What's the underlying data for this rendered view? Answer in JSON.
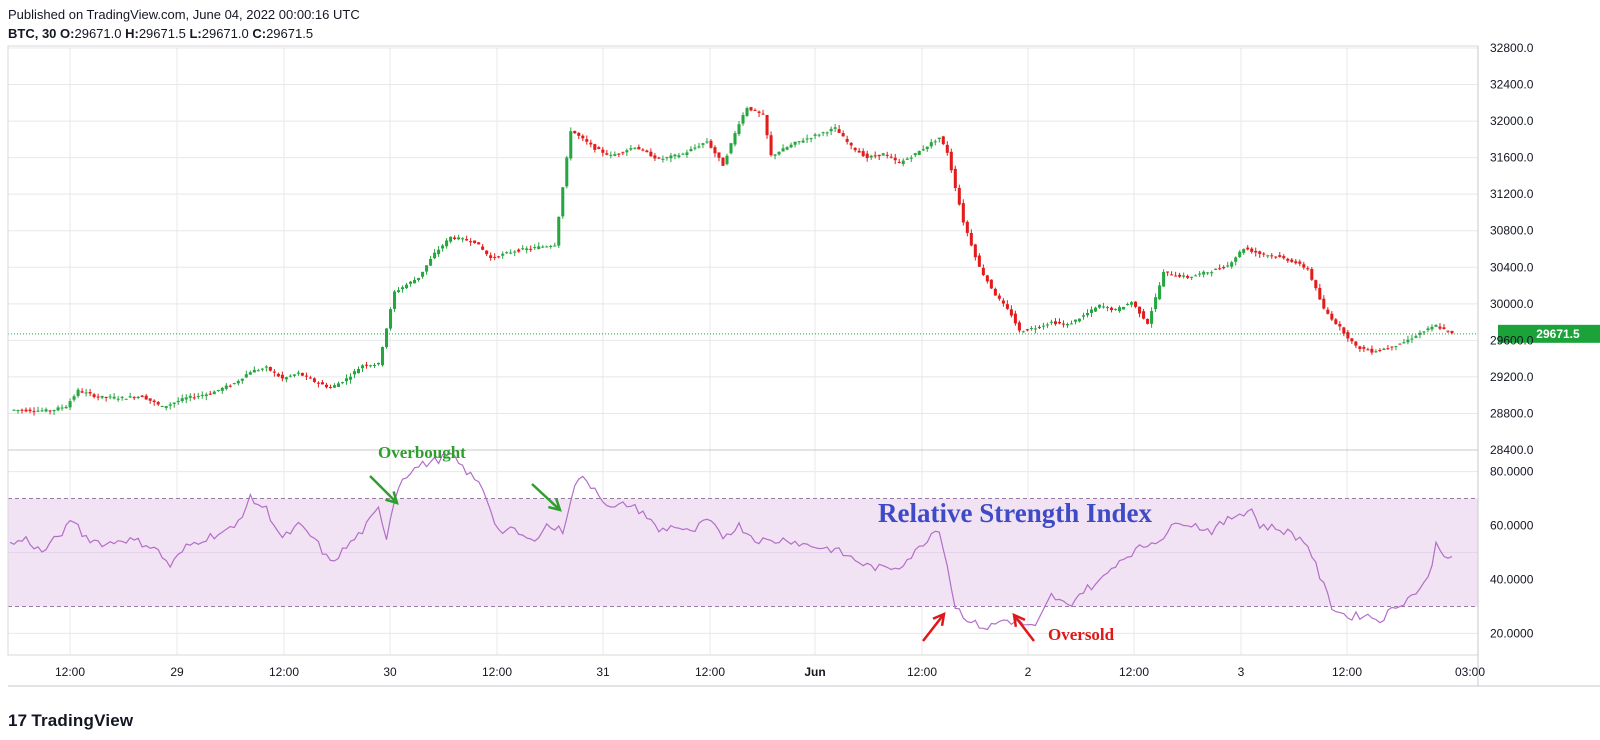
{
  "header": {
    "published": "Published on TradingView.com, June 04, 2022 00:00:16 UTC",
    "symbol": "BTC, 30",
    "o_label": "O:",
    "o_val": "29671.0",
    "h_label": "H:",
    "h_val": "29671.5",
    "l_label": "L:",
    "l_val": "29671.0",
    "c_label": "C:",
    "c_val": "29671.5"
  },
  "footer": {
    "logo_text": "TradingView",
    "logo_icon": "tradingview-logo-icon"
  },
  "colors": {
    "up": "#26a641",
    "down": "#e31b1b",
    "rsi": "#b36ec8",
    "band": "#f1e3f3",
    "grid": "#e8e8ec",
    "price_tag": "#1ba33a",
    "annotation_title": "#3f4bc6",
    "overbought": "#2e9e2e",
    "oversold": "#e01818"
  },
  "chart_data": [
    {
      "type": "candlestick",
      "symbol": "BTC",
      "interval": "30",
      "ylim": [
        28400,
        32800
      ],
      "y_ticks": [
        "32800.0",
        "32400.0",
        "32000.0",
        "31600.0",
        "31200.0",
        "30800.0",
        "30400.0",
        "30000.0",
        "29600.0",
        "29200.0",
        "28800.0",
        "28400.0"
      ],
      "last_price": "29671.5",
      "x_ticks": [
        "12:00",
        "29",
        "12:00",
        "30",
        "12:00",
        "31",
        "12:00",
        "Jun",
        "12:00",
        "2",
        "12:00",
        "3",
        "12:00",
        "03:00"
      ],
      "anchors": [
        [
          0,
          28840
        ],
        [
          10,
          28830
        ],
        [
          14,
          28880
        ],
        [
          17,
          29050
        ],
        [
          22,
          28980
        ],
        [
          28,
          28970
        ],
        [
          33,
          28990
        ],
        [
          38,
          28870
        ],
        [
          44,
          28970
        ],
        [
          50,
          29020
        ],
        [
          56,
          29130
        ],
        [
          60,
          29260
        ],
        [
          64,
          29300
        ],
        [
          68,
          29180
        ],
        [
          72,
          29240
        ],
        [
          76,
          29150
        ],
        [
          80,
          29080
        ],
        [
          84,
          29180
        ],
        [
          88,
          29330
        ],
        [
          92,
          29340
        ],
        [
          96,
          30130
        ],
        [
          102,
          30290
        ],
        [
          106,
          30550
        ],
        [
          110,
          30730
        ],
        [
          116,
          30680
        ],
        [
          120,
          30500
        ],
        [
          126,
          30580
        ],
        [
          132,
          30620
        ],
        [
          136,
          30650
        ],
        [
          140,
          31900
        ],
        [
          146,
          31700
        ],
        [
          150,
          31620
        ],
        [
          156,
          31720
        ],
        [
          162,
          31580
        ],
        [
          168,
          31640
        ],
        [
          174,
          31780
        ],
        [
          178,
          31520
        ],
        [
          182,
          31980
        ],
        [
          184,
          32150
        ],
        [
          188,
          32060
        ],
        [
          190,
          31620
        ],
        [
          196,
          31760
        ],
        [
          202,
          31860
        ],
        [
          206,
          31920
        ],
        [
          210,
          31720
        ],
        [
          214,
          31600
        ],
        [
          218,
          31640
        ],
        [
          222,
          31540
        ],
        [
          226,
          31640
        ],
        [
          232,
          31820
        ],
        [
          234,
          31660
        ],
        [
          238,
          30900
        ],
        [
          242,
          30400
        ],
        [
          246,
          30100
        ],
        [
          250,
          29880
        ],
        [
          252,
          29700
        ],
        [
          256,
          29740
        ],
        [
          260,
          29800
        ],
        [
          264,
          29770
        ],
        [
          268,
          29870
        ],
        [
          272,
          29980
        ],
        [
          276,
          29930
        ],
        [
          280,
          30020
        ],
        [
          284,
          29790
        ],
        [
          288,
          30340
        ],
        [
          294,
          30290
        ],
        [
          300,
          30360
        ],
        [
          304,
          30420
        ],
        [
          308,
          30610
        ],
        [
          312,
          30550
        ],
        [
          316,
          30520
        ],
        [
          320,
          30470
        ],
        [
          324,
          30380
        ],
        [
          328,
          29940
        ],
        [
          332,
          29740
        ],
        [
          336,
          29530
        ],
        [
          340,
          29480
        ],
        [
          344,
          29520
        ],
        [
          348,
          29580
        ],
        [
          352,
          29680
        ],
        [
          356,
          29760
        ],
        [
          360,
          29671
        ]
      ]
    },
    {
      "type": "line",
      "indicator": "RSI",
      "title": "Relative Strength Index",
      "ylim": [
        12,
        88
      ],
      "y_ticks": [
        "80.0000",
        "60.0000",
        "40.0000",
        "20.0000"
      ],
      "bands": [
        30,
        70
      ],
      "annotations": [
        {
          "text": "Overbought",
          "color": "overbought"
        },
        {
          "text": "Oversold",
          "color": "oversold"
        }
      ],
      "anchors": [
        [
          0,
          53
        ],
        [
          4,
          55
        ],
        [
          8,
          50
        ],
        [
          12,
          56
        ],
        [
          16,
          62
        ],
        [
          18,
          57
        ],
        [
          20,
          55
        ],
        [
          24,
          53
        ],
        [
          28,
          55
        ],
        [
          32,
          54
        ],
        [
          36,
          52
        ],
        [
          40,
          45
        ],
        [
          44,
          52
        ],
        [
          48,
          55
        ],
        [
          52,
          57
        ],
        [
          56,
          59
        ],
        [
          60,
          70
        ],
        [
          64,
          66
        ],
        [
          68,
          55
        ],
        [
          72,
          60
        ],
        [
          76,
          55
        ],
        [
          80,
          46
        ],
        [
          84,
          52
        ],
        [
          88,
          58
        ],
        [
          92,
          66
        ],
        [
          94,
          56
        ],
        [
          96,
          70
        ],
        [
          98,
          78
        ],
        [
          102,
          82
        ],
        [
          106,
          84
        ],
        [
          110,
          86
        ],
        [
          114,
          80
        ],
        [
          118,
          74
        ],
        [
          122,
          58
        ],
        [
          126,
          58
        ],
        [
          130,
          54
        ],
        [
          134,
          60
        ],
        [
          138,
          58
        ],
        [
          140,
          70
        ],
        [
          142,
          78
        ],
        [
          146,
          74
        ],
        [
          150,
          66
        ],
        [
          154,
          68
        ],
        [
          158,
          65
        ],
        [
          162,
          58
        ],
        [
          166,
          60
        ],
        [
          170,
          57
        ],
        [
          174,
          62
        ],
        [
          178,
          56
        ],
        [
          182,
          60
        ],
        [
          186,
          55
        ],
        [
          190,
          54
        ],
        [
          194,
          55
        ],
        [
          198,
          53
        ],
        [
          202,
          52
        ],
        [
          206,
          51
        ],
        [
          210,
          48
        ],
        [
          214,
          45
        ],
        [
          218,
          44
        ],
        [
          222,
          45
        ],
        [
          226,
          50
        ],
        [
          230,
          57
        ],
        [
          232,
          59
        ],
        [
          234,
          45
        ],
        [
          236,
          30
        ],
        [
          240,
          24
        ],
        [
          244,
          22
        ],
        [
          248,
          25
        ],
        [
          252,
          24
        ],
        [
          256,
          22
        ],
        [
          260,
          34
        ],
        [
          264,
          30
        ],
        [
          268,
          36
        ],
        [
          272,
          39
        ],
        [
          276,
          46
        ],
        [
          280,
          50
        ],
        [
          284,
          53
        ],
        [
          288,
          56
        ],
        [
          292,
          62
        ],
        [
          296,
          60
        ],
        [
          300,
          58
        ],
        [
          304,
          62
        ],
        [
          306,
          64
        ],
        [
          310,
          66
        ],
        [
          312,
          60
        ],
        [
          316,
          59
        ],
        [
          320,
          57
        ],
        [
          324,
          53
        ],
        [
          326,
          45
        ],
        [
          330,
          30
        ],
        [
          334,
          26
        ],
        [
          338,
          27
        ],
        [
          342,
          25
        ],
        [
          346,
          30
        ],
        [
          350,
          34
        ],
        [
          354,
          40
        ],
        [
          356,
          53
        ],
        [
          358,
          50
        ],
        [
          360,
          47
        ]
      ]
    }
  ]
}
